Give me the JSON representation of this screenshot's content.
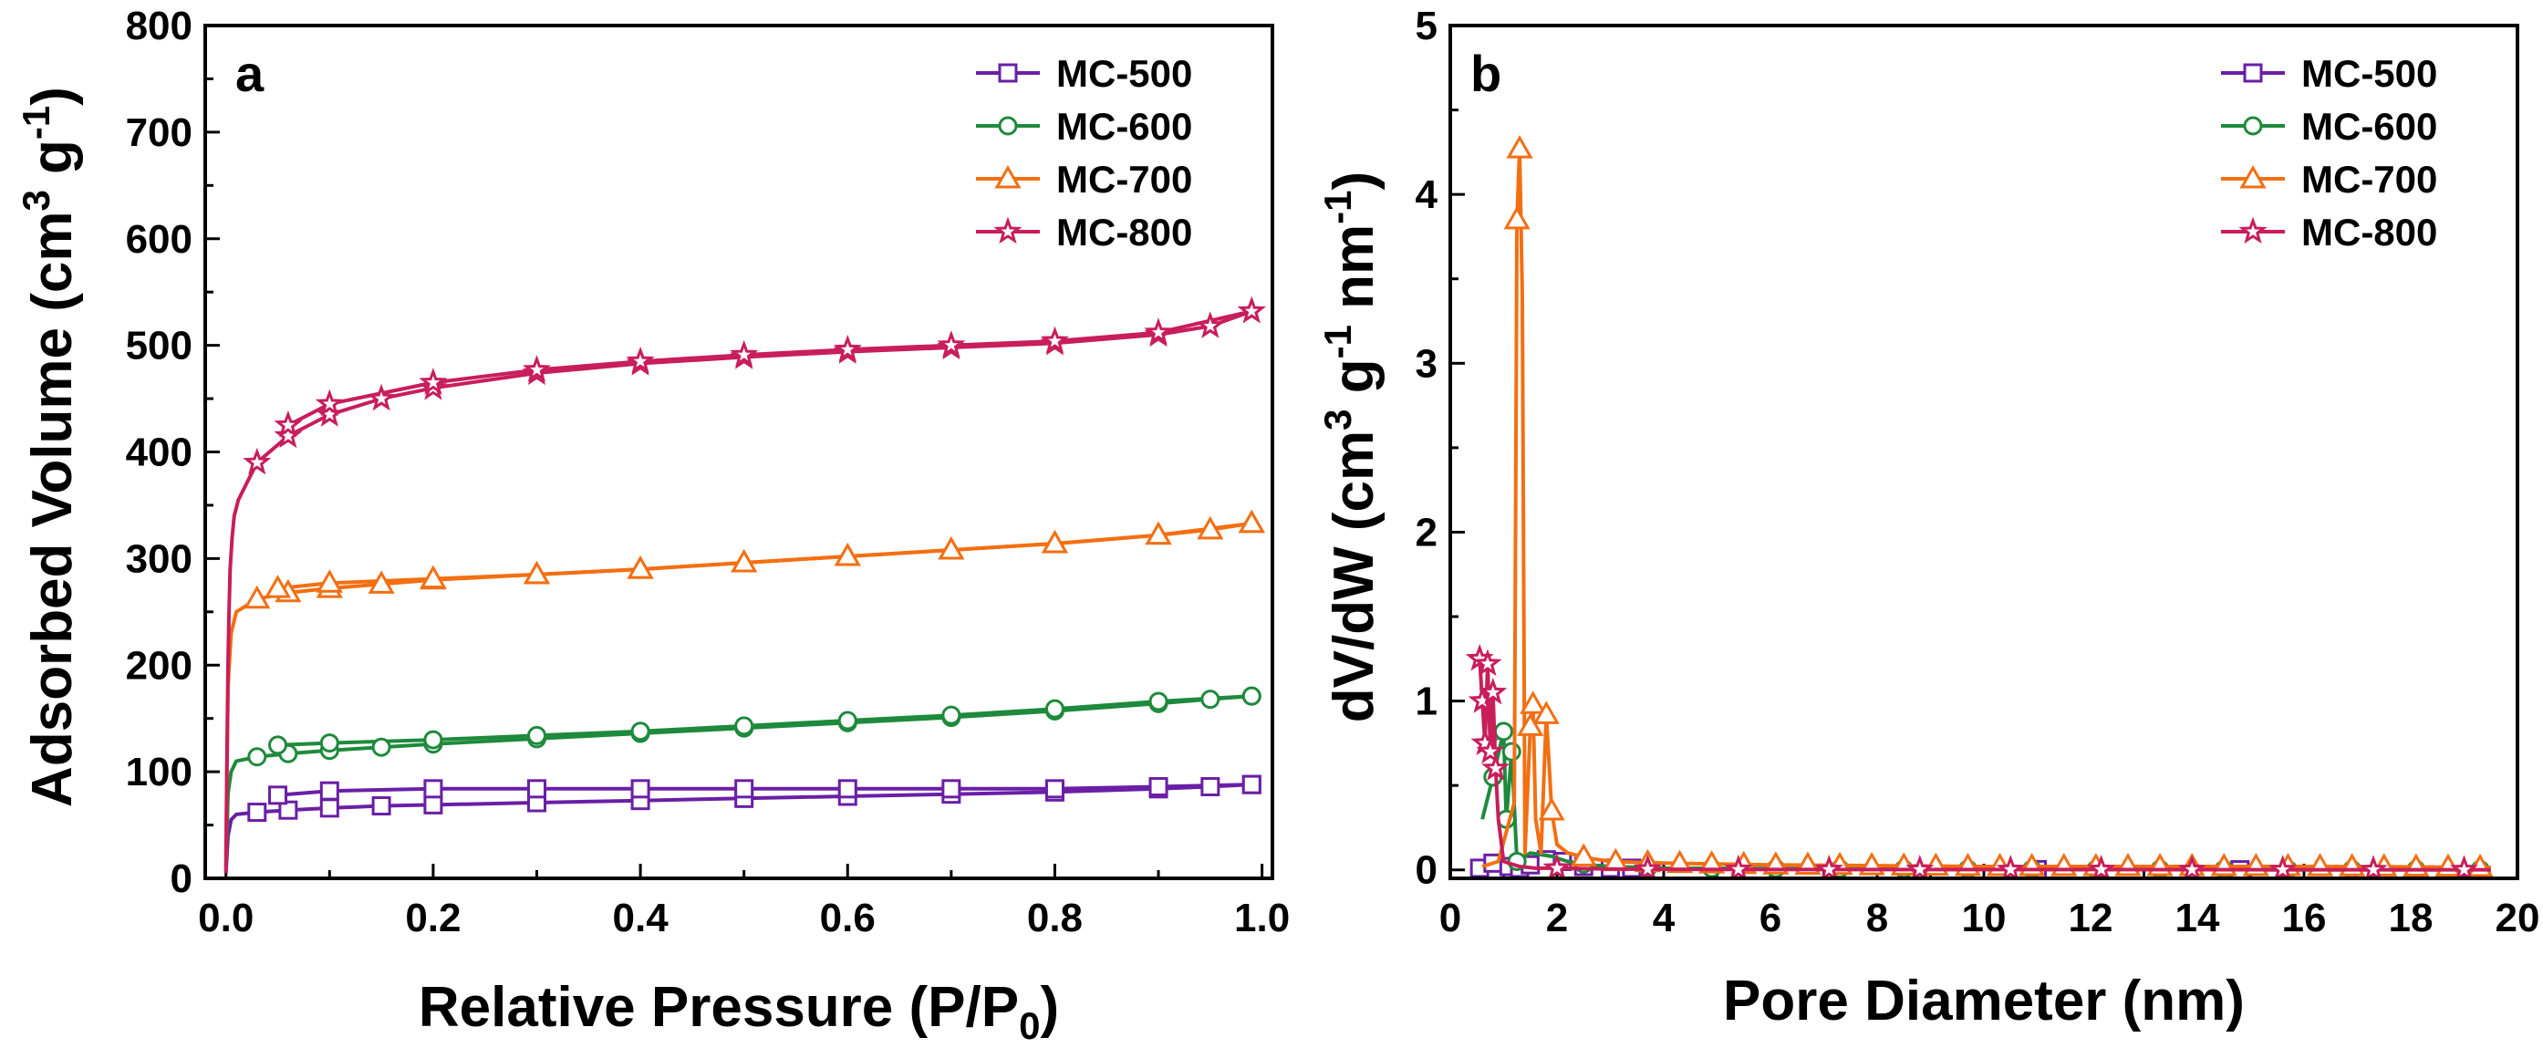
{
  "colors": {
    "MC-500": "#6a1fa6",
    "MC-600": "#1e8a3c",
    "MC-700": "#f36f12",
    "MC-800": "#c81e5a"
  },
  "markers": {
    "MC-500": "square",
    "MC-600": "circle",
    "MC-700": "triangle",
    "MC-800": "star"
  },
  "chart_data": [
    {
      "id": "a",
      "type": "line",
      "panel_label": "a",
      "xlabel_main": "Relative Pressure (P/P",
      "xlabel_sub": "0",
      "xlabel_end": ")",
      "ylabel_main": "Adsorbed Volume (cm",
      "ylabel_sup1": "3",
      "ylabel_mid": " g",
      "ylabel_sup2": "-1",
      "ylabel_end": ")",
      "xlim": [
        -0.02,
        1.01
      ],
      "ylim": [
        0,
        800
      ],
      "xticks": [
        0.0,
        0.2,
        0.4,
        0.6,
        0.8,
        1.0
      ],
      "xtick_labels": [
        "0.0",
        "0.2",
        "0.4",
        "0.6",
        "0.8",
        "1.0"
      ],
      "yticks": [
        0,
        100,
        200,
        300,
        400,
        500,
        600,
        700,
        800
      ],
      "ytick_labels": [
        "0",
        "100",
        "200",
        "300",
        "400",
        "500",
        "600",
        "700",
        "800"
      ],
      "legend_position": "top-right",
      "series": [
        {
          "name": "MC-500",
          "adsorption": [
            [
              0.0,
              5
            ],
            [
              0.002,
              40
            ],
            [
              0.005,
              55
            ],
            [
              0.01,
              60
            ],
            [
              0.03,
              62
            ],
            [
              0.06,
              64
            ],
            [
              0.1,
              66
            ],
            [
              0.15,
              68
            ],
            [
              0.2,
              69
            ],
            [
              0.3,
              71
            ],
            [
              0.4,
              73
            ],
            [
              0.5,
              75
            ],
            [
              0.6,
              77
            ],
            [
              0.7,
              79
            ],
            [
              0.8,
              81
            ],
            [
              0.9,
              84
            ],
            [
              0.95,
              86
            ],
            [
              0.99,
              88
            ]
          ],
          "desorption": [
            [
              0.99,
              88
            ],
            [
              0.9,
              86
            ],
            [
              0.8,
              84
            ],
            [
              0.7,
              84
            ],
            [
              0.6,
              84
            ],
            [
              0.5,
              84
            ],
            [
              0.4,
              84
            ],
            [
              0.3,
              84
            ],
            [
              0.2,
              84
            ],
            [
              0.1,
              82
            ],
            [
              0.05,
              78
            ]
          ]
        },
        {
          "name": "MC-600",
          "adsorption": [
            [
              0.0,
              10
            ],
            [
              0.002,
              80
            ],
            [
              0.005,
              100
            ],
            [
              0.01,
              110
            ],
            [
              0.03,
              114
            ],
            [
              0.06,
              117
            ],
            [
              0.1,
              120
            ],
            [
              0.15,
              123
            ],
            [
              0.2,
              126
            ],
            [
              0.3,
              131
            ],
            [
              0.4,
              136
            ],
            [
              0.5,
              141
            ],
            [
              0.6,
              146
            ],
            [
              0.7,
              151
            ],
            [
              0.8,
              157
            ],
            [
              0.9,
              164
            ],
            [
              0.95,
              168
            ],
            [
              0.99,
              171
            ]
          ],
          "desorption": [
            [
              0.99,
              171
            ],
            [
              0.9,
              166
            ],
            [
              0.8,
              159
            ],
            [
              0.7,
              153
            ],
            [
              0.6,
              148
            ],
            [
              0.5,
              143
            ],
            [
              0.4,
              138
            ],
            [
              0.3,
              134
            ],
            [
              0.2,
              130
            ],
            [
              0.1,
              127
            ],
            [
              0.05,
              125
            ]
          ]
        },
        {
          "name": "MC-700",
          "adsorption": [
            [
              0.0,
              20
            ],
            [
              0.002,
              180
            ],
            [
              0.005,
              230
            ],
            [
              0.01,
              250
            ],
            [
              0.03,
              262
            ],
            [
              0.06,
              268
            ],
            [
              0.1,
              272
            ],
            [
              0.15,
              276
            ],
            [
              0.2,
              280
            ],
            [
              0.3,
              285
            ],
            [
              0.4,
              290
            ],
            [
              0.5,
              296
            ],
            [
              0.6,
              302
            ],
            [
              0.7,
              308
            ],
            [
              0.8,
              314
            ],
            [
              0.9,
              322
            ],
            [
              0.95,
              327
            ],
            [
              0.99,
              333
            ]
          ],
          "desorption": [
            [
              0.99,
              333
            ],
            [
              0.9,
              322
            ],
            [
              0.8,
              314
            ],
            [
              0.7,
              308
            ],
            [
              0.6,
              302
            ],
            [
              0.5,
              296
            ],
            [
              0.4,
              290
            ],
            [
              0.3,
              285
            ],
            [
              0.2,
              281
            ],
            [
              0.1,
              277
            ],
            [
              0.05,
              272
            ]
          ]
        },
        {
          "name": "MC-800",
          "adsorption": [
            [
              0.0,
              5
            ],
            [
              0.001,
              120
            ],
            [
              0.002,
              200
            ],
            [
              0.003,
              250
            ],
            [
              0.004,
              290
            ],
            [
              0.006,
              320
            ],
            [
              0.008,
              340
            ],
            [
              0.012,
              355
            ],
            [
              0.03,
              390
            ],
            [
              0.06,
              415
            ],
            [
              0.1,
              435
            ],
            [
              0.15,
              450
            ],
            [
              0.2,
              460
            ],
            [
              0.3,
              474
            ],
            [
              0.4,
              483
            ],
            [
              0.5,
              489
            ],
            [
              0.6,
              494
            ],
            [
              0.7,
              498
            ],
            [
              0.8,
              502
            ],
            [
              0.9,
              510
            ],
            [
              0.95,
              518
            ],
            [
              0.99,
              532
            ]
          ],
          "desorption": [
            [
              0.99,
              532
            ],
            [
              0.9,
              512
            ],
            [
              0.8,
              504
            ],
            [
              0.7,
              500
            ],
            [
              0.6,
              496
            ],
            [
              0.5,
              491
            ],
            [
              0.4,
              485
            ],
            [
              0.3,
              477
            ],
            [
              0.2,
              465
            ],
            [
              0.1,
              445
            ],
            [
              0.06,
              425
            ]
          ]
        }
      ]
    },
    {
      "id": "b",
      "type": "line",
      "panel_label": "b",
      "xlabel": "Pore Diameter (nm)",
      "ylabel_main": "dV/dW (cm",
      "ylabel_sup1": "3",
      "ylabel_mid": " g",
      "ylabel_sup2": "-1",
      "ylabel_mid2": " nm",
      "ylabel_sup3": "-1",
      "ylabel_end": ")",
      "xlim": [
        0,
        20
      ],
      "ylim": [
        -0.05,
        5
      ],
      "xticks": [
        0,
        2,
        4,
        6,
        8,
        10,
        12,
        14,
        16,
        18,
        20
      ],
      "xtick_labels": [
        "0",
        "2",
        "4",
        "6",
        "8",
        "10",
        "12",
        "14",
        "16",
        "18",
        "20"
      ],
      "yticks": [
        0,
        1,
        2,
        3,
        4,
        5
      ],
      "ytick_labels": [
        "0",
        "1",
        "2",
        "3",
        "4",
        "5"
      ],
      "legend_position": "top-right",
      "series": [
        {
          "name": "MC-500",
          "points": [
            [
              0.55,
              0.01
            ],
            [
              0.8,
              0.04
            ],
            [
              1.1,
              0.02
            ],
            [
              1.3,
              0.01
            ],
            [
              1.5,
              0.03
            ],
            [
              1.8,
              0.06
            ],
            [
              2.1,
              0.05
            ],
            [
              2.5,
              0.02
            ],
            [
              3.0,
              0.01
            ],
            [
              3.4,
              0.01
            ],
            [
              5,
              0.005
            ],
            [
              7,
              0.005
            ],
            [
              9,
              0.003
            ],
            [
              11,
              0.002
            ],
            [
              13,
              0.002
            ],
            [
              15,
              0.001
            ],
            [
              17,
              0.001
            ],
            [
              19.5,
              0.001
            ]
          ],
          "marker_x": [
            0.55,
            0.8,
            1.1,
            1.3,
            1.5,
            1.8,
            2.1,
            2.5,
            3.0,
            3.4,
            11.0,
            14.8
          ]
        },
        {
          "name": "MC-600",
          "points": [
            [
              0.6,
              0.3
            ],
            [
              0.8,
              0.55
            ],
            [
              1.0,
              0.82
            ],
            [
              1.05,
              0.3
            ],
            [
              1.15,
              0.7
            ],
            [
              1.25,
              0.05
            ],
            [
              1.5,
              0.1
            ],
            [
              1.9,
              0.08
            ],
            [
              2.2,
              0.05
            ],
            [
              2.6,
              0.03
            ],
            [
              3.0,
              0.02
            ],
            [
              4,
              0.01
            ],
            [
              6,
              0.008
            ],
            [
              8,
              0.005
            ],
            [
              10,
              0.004
            ],
            [
              12,
              0.003
            ],
            [
              14,
              0.003
            ],
            [
              16,
              0.002
            ],
            [
              19.5,
              0.002
            ]
          ],
          "marker_x": [
            0.8,
            1.0,
            1.05,
            1.15,
            1.25
          ]
        },
        {
          "name": "MC-700",
          "points": [
            [
              0.6,
              0.02
            ],
            [
              0.9,
              0.05
            ],
            [
              1.2,
              0.4
            ],
            [
              1.25,
              3.85
            ],
            [
              1.3,
              4.27
            ],
            [
              1.35,
              3.4
            ],
            [
              1.4,
              0.1
            ],
            [
              1.5,
              0.85
            ],
            [
              1.55,
              0.98
            ],
            [
              1.6,
              0.3
            ],
            [
              1.7,
              0.1
            ],
            [
              1.8,
              0.92
            ],
            [
              1.9,
              0.35
            ],
            [
              2.0,
              0.15
            ],
            [
              2.2,
              0.1
            ],
            [
              2.6,
              0.07
            ],
            [
              3.0,
              0.05
            ],
            [
              4.0,
              0.04
            ],
            [
              5.0,
              0.035
            ],
            [
              6,
              0.03
            ],
            [
              8,
              0.025
            ],
            [
              10,
              0.02
            ],
            [
              12,
              0.02
            ],
            [
              14,
              0.02
            ],
            [
              16,
              0.02
            ],
            [
              18,
              0.018
            ],
            [
              19.5,
              0.015
            ]
          ],
          "marker_x": [
            1.25,
            1.3,
            1.5,
            1.55,
            1.8,
            1.9
          ]
        },
        {
          "name": "MC-800",
          "points": [
            [
              0.55,
              1.25
            ],
            [
              0.6,
              1.0
            ],
            [
              0.65,
              0.75
            ],
            [
              0.7,
              1.22
            ],
            [
              0.75,
              0.7
            ],
            [
              0.8,
              1.05
            ],
            [
              0.85,
              0.6
            ],
            [
              0.9,
              0.3
            ],
            [
              1.0,
              0.05
            ],
            [
              1.3,
              0.02
            ],
            [
              1.6,
              0.01
            ],
            [
              2.0,
              0.01
            ],
            [
              3.0,
              0.005
            ],
            [
              5,
              0.003
            ],
            [
              8,
              0.002
            ],
            [
              12,
              0.002
            ],
            [
              16,
              0.001
            ],
            [
              19.5,
              0.001
            ]
          ],
          "marker_x": [
            0.55,
            0.6,
            0.65,
            0.7,
            0.75,
            0.8,
            0.85
          ]
        }
      ]
    }
  ]
}
